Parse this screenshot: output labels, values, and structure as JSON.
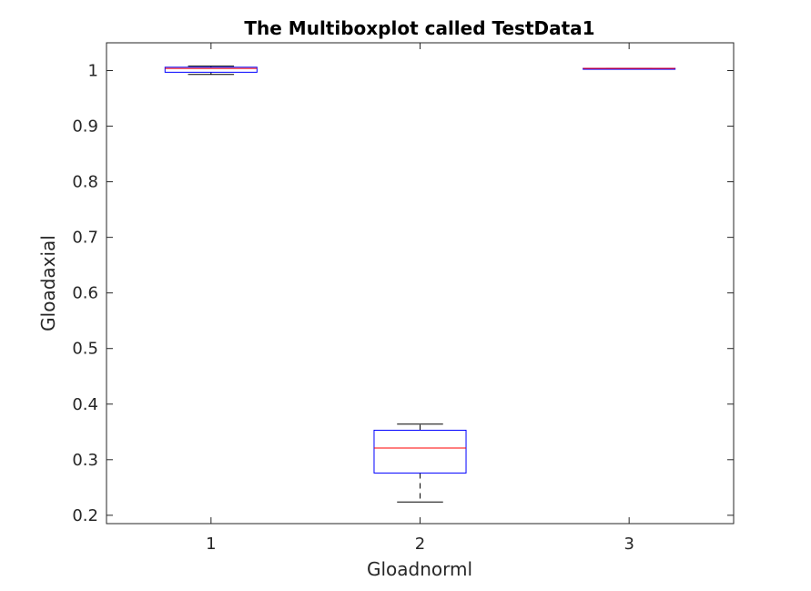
{
  "chart_data": {
    "type": "box",
    "title": "The Multiboxplot called TestData1",
    "xlabel": "Gloadnorml",
    "ylabel": "Gloadaxial",
    "categories": [
      "1",
      "2",
      "3"
    ],
    "xlim": [
      0.5,
      3.5
    ],
    "ylim": [
      0.185,
      1.05
    ],
    "yticks": [
      0.2,
      0.3,
      0.4,
      0.5,
      0.6,
      0.7,
      0.8,
      0.9,
      1
    ],
    "ytick_labels": [
      "0.2",
      "0.3",
      "0.4",
      "0.5",
      "0.6",
      "0.7",
      "0.8",
      "0.9",
      "1"
    ],
    "grid": false,
    "boxes": [
      {
        "category": "1",
        "whisker_low": 0.993,
        "q1": 0.997,
        "median": 1.004,
        "q3": 1.006,
        "whisker_high": 1.008
      },
      {
        "category": "2",
        "whisker_low": 0.224,
        "q1": 0.276,
        "median": 0.321,
        "q3": 0.353,
        "whisker_high": 0.364
      },
      {
        "category": "3",
        "whisker_low": 1.004,
        "q1": 1.004,
        "median": 1.004,
        "q3": 1.004,
        "whisker_high": 1.004
      }
    ],
    "colors": {
      "box": "#0000ff",
      "median": "#ff0000",
      "whisker": "#000000",
      "axes": "#262626"
    }
  }
}
